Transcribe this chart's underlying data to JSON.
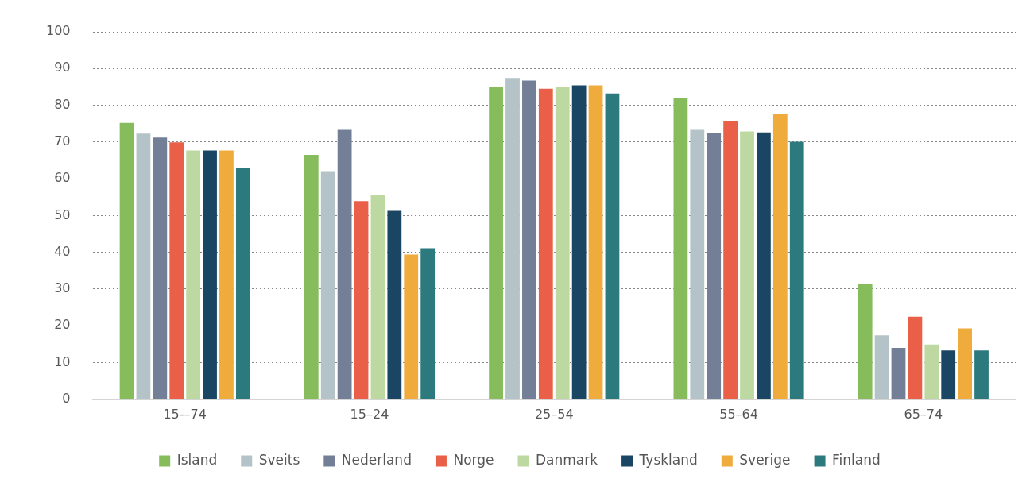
{
  "chart_data": {
    "type": "bar",
    "categories": [
      "15-–74",
      "15–24",
      "25–54",
      "55–64",
      "65–74"
    ],
    "series": [
      {
        "name": "Island",
        "color": "#86bc5b",
        "values": [
          75.2,
          66.5,
          84.9,
          82.0,
          31.4
        ]
      },
      {
        "name": "Sveits",
        "color": "#b3c3c7",
        "values": [
          72.3,
          62.1,
          87.4,
          73.3,
          17.4
        ]
      },
      {
        "name": "Nederland",
        "color": "#727f97",
        "values": [
          71.2,
          73.3,
          86.7,
          72.4,
          14.0
        ]
      },
      {
        "name": "Norge",
        "color": "#e95f47",
        "values": [
          69.9,
          53.9,
          84.5,
          75.8,
          22.5
        ]
      },
      {
        "name": "Danmark",
        "color": "#bdd9a1",
        "values": [
          67.7,
          55.6,
          84.9,
          72.9,
          14.9
        ]
      },
      {
        "name": "Tyskland",
        "color": "#1a4663",
        "values": [
          67.7,
          51.3,
          85.4,
          72.6,
          13.3
        ]
      },
      {
        "name": "Sverige",
        "color": "#efab3c",
        "values": [
          67.7,
          39.4,
          85.4,
          77.7,
          19.3
        ]
      },
      {
        "name": "Finland",
        "color": "#2d7a7e",
        "values": [
          62.9,
          41.1,
          83.2,
          70.1,
          13.3
        ]
      }
    ],
    "ylim": [
      0,
      100
    ],
    "yticks": [
      0,
      10,
      20,
      30,
      40,
      50,
      60,
      70,
      80,
      90,
      100
    ],
    "grid": "y",
    "legend": "bottom"
  }
}
